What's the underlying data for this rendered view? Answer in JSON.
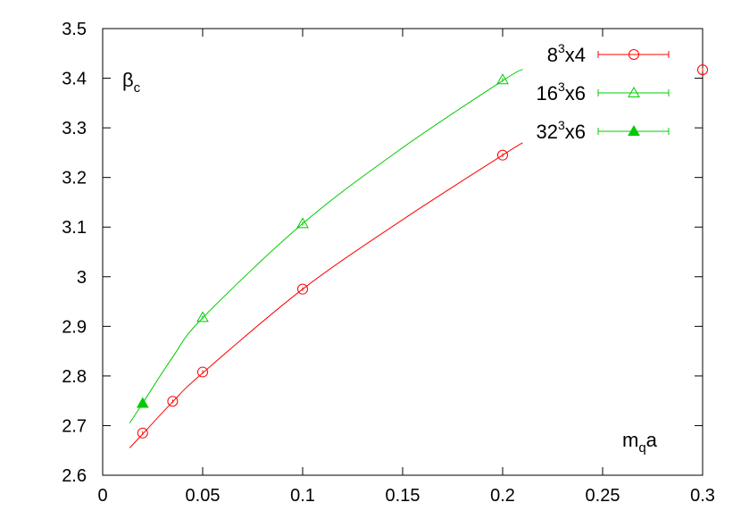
{
  "chart_data": {
    "type": "scatter",
    "title": "",
    "xlabel": {
      "main": "m",
      "sub": "q",
      "rest": "a"
    },
    "ylabel": {
      "main": "β",
      "sub": "c"
    },
    "xlim": [
      0,
      0.3
    ],
    "ylim": [
      2.6,
      3.5
    ],
    "xticks": [
      0,
      0.05,
      0.1,
      0.15,
      0.2,
      0.25,
      0.3
    ],
    "xtick_labels": [
      "0",
      "0.05",
      "0.1",
      "0.15",
      "0.2",
      "0.25",
      "0.3"
    ],
    "yticks": [
      2.6,
      2.7,
      2.8,
      2.9,
      3.0,
      3.1,
      3.2,
      3.3,
      3.4,
      3.5
    ],
    "ytick_labels": [
      "2.6",
      "2.7",
      "2.8",
      "2.9",
      "3",
      "3.1",
      "3.2",
      "3.3",
      "3.4",
      "3.5"
    ],
    "grid": false,
    "legend_position": "top-right",
    "series": [
      {
        "name": "8^3x4",
        "label": {
          "base": "8",
          "sup": "3",
          "rest": "x4"
        },
        "color": "#ff0000",
        "marker": "open-circle",
        "x": [
          0.02,
          0.035,
          0.05,
          0.1,
          0.2,
          0.3
        ],
        "y": [
          2.685,
          2.749,
          2.808,
          2.975,
          3.245,
          3.417
        ],
        "fit_curve": {
          "x": [
            0.0135,
            0.02,
            0.035,
            0.05,
            0.1,
            0.15,
            0.2,
            0.21
          ],
          "y": [
            2.655,
            2.683,
            2.748,
            2.806,
            2.975,
            3.115,
            3.245,
            3.27
          ]
        }
      },
      {
        "name": "16^3x6",
        "label": {
          "base": "16",
          "sup": "3",
          "rest": "x6"
        },
        "color": "#00cc00",
        "marker": "open-triangle",
        "x": [
          0.05,
          0.1,
          0.2
        ],
        "y": [
          2.918,
          3.107,
          3.397
        ],
        "fit_curve": {
          "x": [
            0.0135,
            0.02,
            0.035,
            0.05,
            0.1,
            0.15,
            0.2,
            0.21
          ],
          "y": [
            2.705,
            2.745,
            2.838,
            2.917,
            3.107,
            3.26,
            3.395,
            3.418
          ]
        }
      },
      {
        "name": "32^3x6",
        "label": {
          "base": "32",
          "sup": "3",
          "rest": "x6"
        },
        "color": "#00cc00",
        "marker": "filled-triangle",
        "x": [
          0.02
        ],
        "y": [
          2.745
        ]
      }
    ]
  }
}
